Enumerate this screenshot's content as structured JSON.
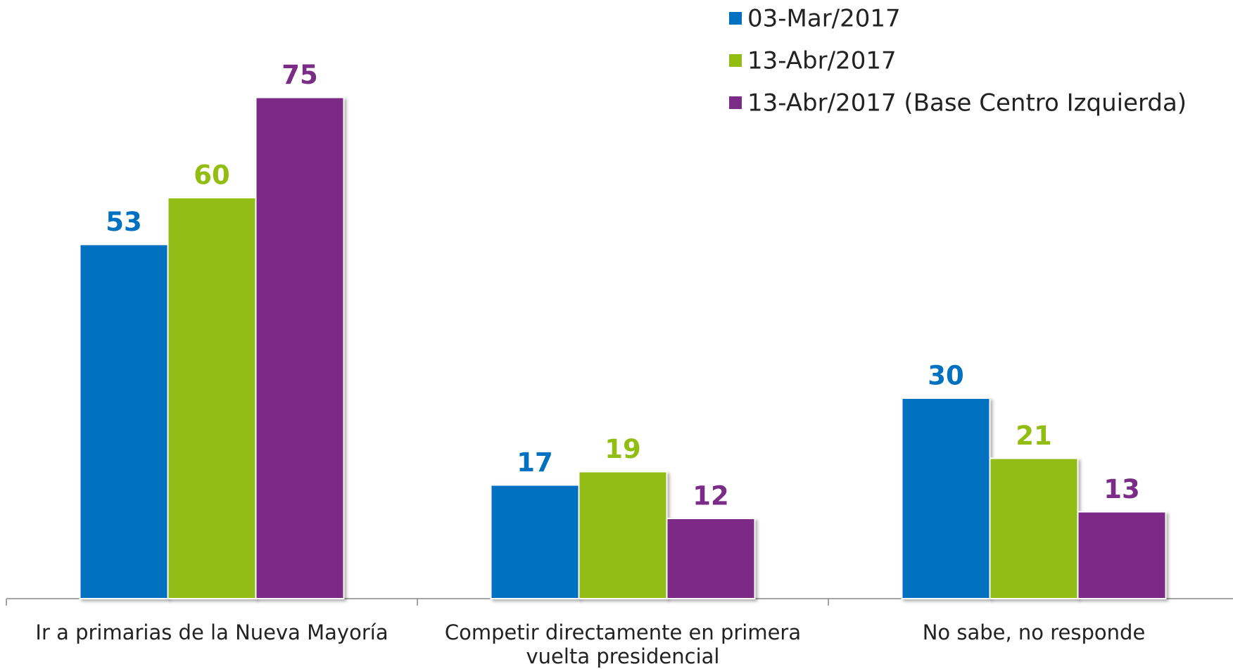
{
  "chart_data": {
    "type": "bar",
    "categories": [
      "Ir a primarias de la Nueva Mayoría",
      "Competir directamente en primera vuelta presidencial",
      "No sabe, no responde"
    ],
    "series": [
      {
        "name": "03-Mar/2017",
        "color": "#0070c0",
        "values": [
          53,
          17,
          30
        ]
      },
      {
        "name": "13-Abr/2017",
        "color": "#92bd12",
        "values": [
          60,
          19,
          21
        ]
      },
      {
        "name": "13-Abr/2017 (Base Centro Izquierda)",
        "color": "#7b2c86",
        "values": [
          75,
          12,
          13
        ]
      }
    ],
    "ylim": [
      0,
      80
    ],
    "legend": "top-right"
  }
}
